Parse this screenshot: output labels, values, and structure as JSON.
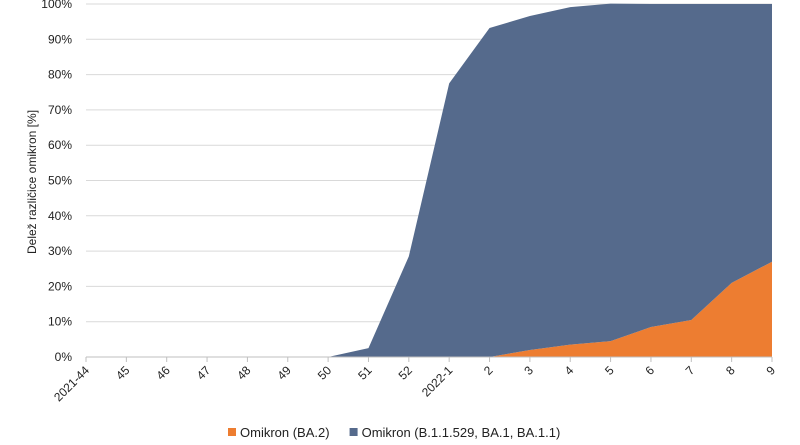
{
  "chart_data": {
    "type": "area",
    "stacked": true,
    "ylabel": "Delež različice omikron [%]",
    "ylim": [
      0,
      100
    ],
    "y_ticks": [
      "0%",
      "10%",
      "20%",
      "30%",
      "40%",
      "50%",
      "60%",
      "70%",
      "80%",
      "90%",
      "100%"
    ],
    "categories": [
      "2021-44",
      "45",
      "46",
      "47",
      "48",
      "49",
      "50",
      "51",
      "52",
      "2022-1",
      "2",
      "3",
      "4",
      "5",
      "6",
      "7",
      "8",
      "9"
    ],
    "series": [
      {
        "name": "Omikron (BA.2)",
        "color": "#ED7D31",
        "values": [
          0,
          0,
          0,
          0,
          0,
          0,
          0,
          0,
          0,
          0,
          0,
          2,
          3.5,
          4.5,
          8.5,
          10.5,
          21,
          27
        ]
      },
      {
        "name": "Omikron (B.1.1.529, BA.1, BA.1.1)",
        "color": "#556A8C",
        "values": [
          0,
          0,
          0,
          0,
          0,
          0,
          0,
          2.5,
          28.5,
          77.5,
          93.2,
          94.6,
          95.6,
          95.6,
          91.5,
          89.5,
          79,
          73
        ]
      }
    ],
    "grid": true,
    "legend_position": "bottom"
  }
}
